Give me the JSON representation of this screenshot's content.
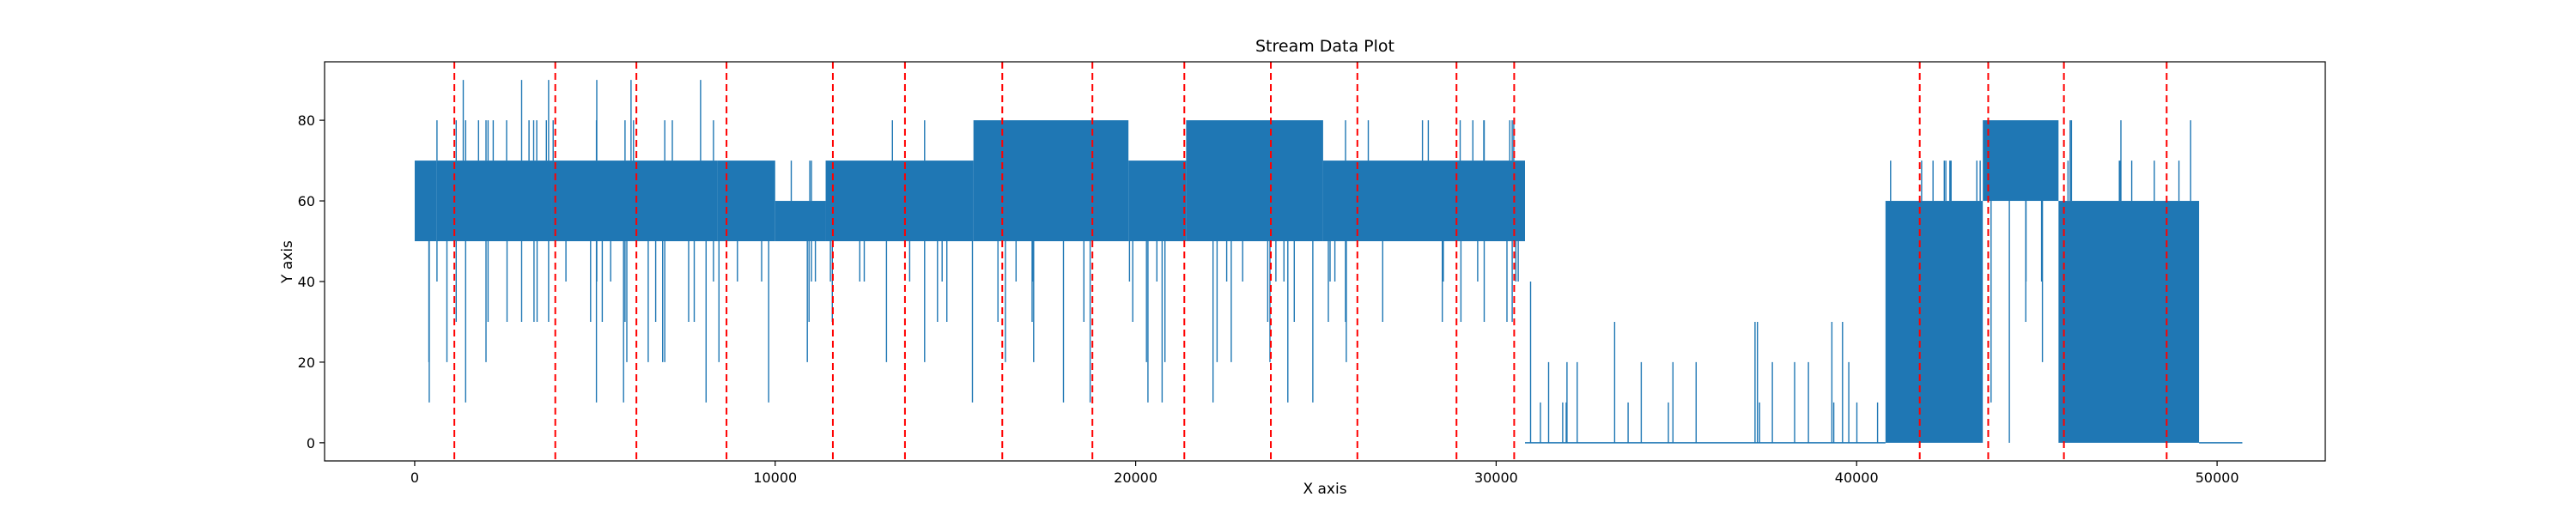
{
  "chart_data": {
    "type": "line",
    "title": "Stream Data Plot",
    "xlabel": "X axis",
    "ylabel": "Y axis",
    "xlim": [
      -2500,
      53000
    ],
    "ylim": [
      -4.5,
      94.5
    ],
    "x_ticks": [
      0,
      10000,
      20000,
      30000,
      40000,
      50000
    ],
    "y_ticks": [
      0,
      20,
      40,
      60,
      80
    ],
    "grid": false,
    "legend": "none",
    "colors": {
      "series": "#1f77b4",
      "change_points": "#ff0000"
    },
    "series": [
      {
        "segments": [
          {
            "x_start": 0,
            "x_end": 600,
            "min": 10,
            "max": 70,
            "base_low": 50,
            "base_high": 70
          },
          {
            "x_start": 600,
            "x_end": 3800,
            "min": 10,
            "max": 90,
            "base_low": 50,
            "base_high": 70
          },
          {
            "x_start": 3800,
            "x_end": 8400,
            "min": 10,
            "max": 90,
            "base_low": 50,
            "base_high": 70
          },
          {
            "x_start": 8400,
            "x_end": 10000,
            "min": 10,
            "max": 80,
            "base_low": 50,
            "base_high": 70
          },
          {
            "x_start": 10000,
            "x_end": 11400,
            "min": 10,
            "max": 80,
            "base_low": 50,
            "base_high": 60
          },
          {
            "x_start": 11400,
            "x_end": 15500,
            "min": 10,
            "max": 80,
            "base_low": 50,
            "base_high": 70
          },
          {
            "x_start": 15500,
            "x_end": 19800,
            "min": 10,
            "max": 80,
            "base_low": 50,
            "base_high": 80
          },
          {
            "x_start": 19800,
            "x_end": 21400,
            "min": 10,
            "max": 80,
            "base_low": 50,
            "base_high": 70
          },
          {
            "x_start": 21400,
            "x_end": 25200,
            "min": 10,
            "max": 80,
            "base_low": 50,
            "base_high": 80
          },
          {
            "x_start": 25200,
            "x_end": 30800,
            "min": 20,
            "max": 80,
            "base_low": 50,
            "base_high": 70
          },
          {
            "x_start": 30800,
            "x_end": 40800,
            "min": 0,
            "max": 40,
            "base_low": 0,
            "base_high": 0
          },
          {
            "x_start": 40800,
            "x_end": 43500,
            "min": 0,
            "max": 80,
            "base_low": 0,
            "base_high": 60
          },
          {
            "x_start": 43500,
            "x_end": 45600,
            "min": 0,
            "max": 80,
            "base_low": 60,
            "base_high": 80
          },
          {
            "x_start": 45600,
            "x_end": 49500,
            "min": 0,
            "max": 80,
            "base_low": 0,
            "base_high": 60
          },
          {
            "x_start": 49500,
            "x_end": 50700,
            "min": 0,
            "max": 0,
            "base_low": 0,
            "base_high": 0
          }
        ]
      }
    ],
    "change_points": [
      1100,
      3900,
      6150,
      8650,
      11600,
      13600,
      16300,
      18800,
      21350,
      23750,
      26150,
      28900,
      30500,
      41750,
      43650,
      45750,
      48600
    ]
  }
}
